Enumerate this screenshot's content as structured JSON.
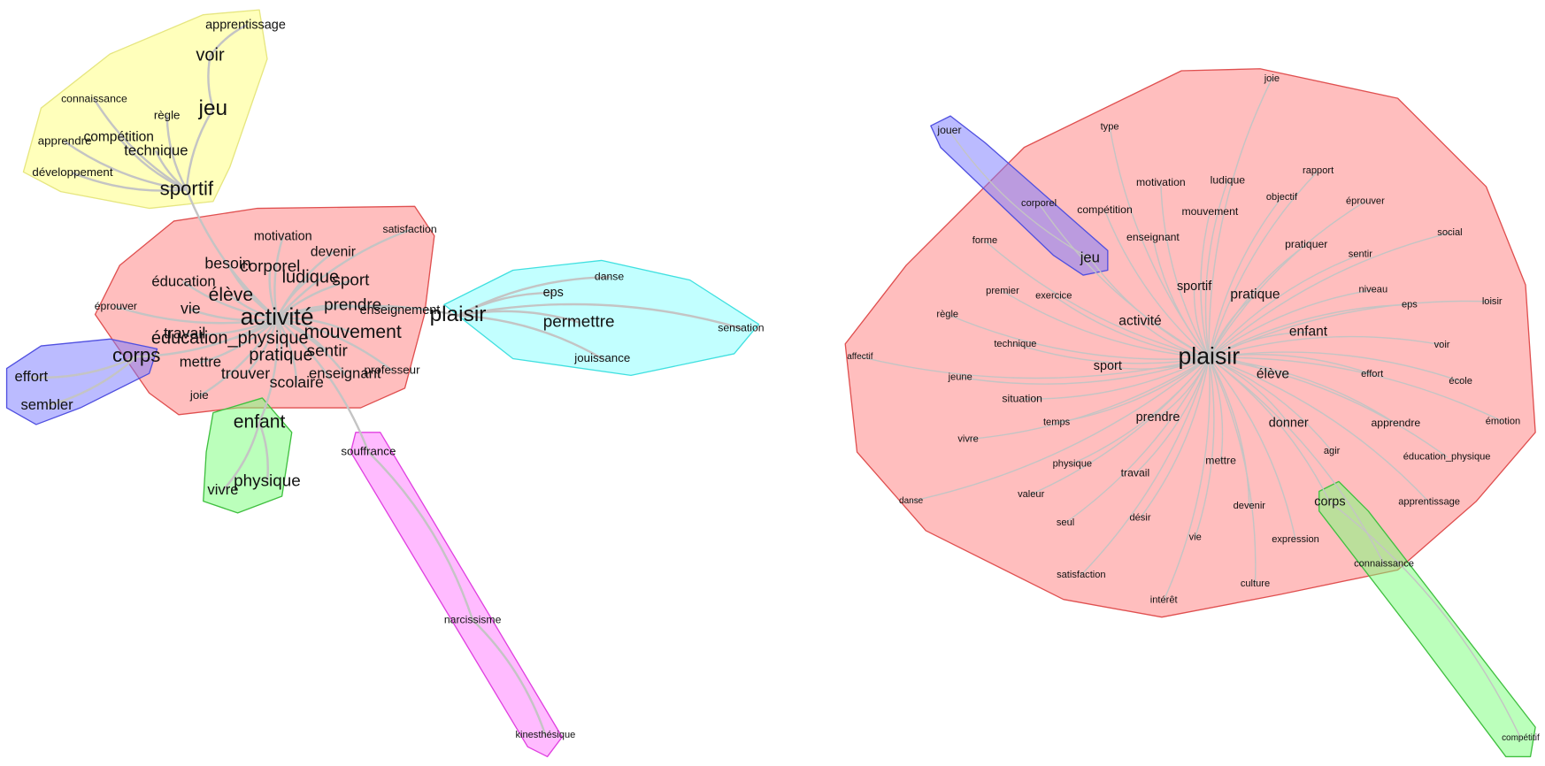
{
  "left": {
    "nodes": [
      "apprentissage",
      "voir",
      "jeu",
      "connaissance",
      "règle",
      "compétition",
      "apprendre",
      "technique",
      "développement",
      "sportif",
      "motivation",
      "satisfaction",
      "devenir",
      "besoin",
      "corporel",
      "ludique",
      "sport",
      "éducation",
      "élève",
      "éprouver",
      "vie",
      "prendre",
      "enseignement",
      "activité",
      "travail",
      "éducation_physique",
      "mouvement",
      "pratique",
      "sentir",
      "mettre",
      "trouver",
      "enseignant",
      "professeur",
      "scolaire",
      "joie",
      "plaisir",
      "eps",
      "danse",
      "permettre",
      "sensation",
      "jouissance",
      "corps",
      "effort",
      "sembler",
      "enfant",
      "vivre",
      "physique",
      "souffrance",
      "narcissisme",
      "kinesthésique"
    ]
  },
  "right": {
    "nodes": [
      "plaisir",
      "joie",
      "type",
      "jouer",
      "motivation",
      "ludique",
      "rapport",
      "objectif",
      "éprouver",
      "corporel",
      "compétition",
      "mouvement",
      "enseignant",
      "social",
      "forme",
      "pratiquer",
      "jeu",
      "sentir",
      "sportif",
      "premier",
      "exercice",
      "pratique",
      "niveau",
      "loisir",
      "eps",
      "règle",
      "activité",
      "enfant",
      "technique",
      "voir",
      "affectif",
      "sport",
      "élève",
      "jeune",
      "effort",
      "école",
      "situation",
      "temps",
      "prendre",
      "donner",
      "apprendre",
      "émotion",
      "vivre",
      "agir",
      "éducation_physique",
      "physique",
      "travail",
      "mettre",
      "danse",
      "valeur",
      "corps",
      "apprentissage",
      "devenir",
      "seul",
      "désir",
      "vie",
      "expression",
      "connaissance",
      "satisfaction",
      "culture",
      "intérêt",
      "compétitif"
    ]
  }
}
